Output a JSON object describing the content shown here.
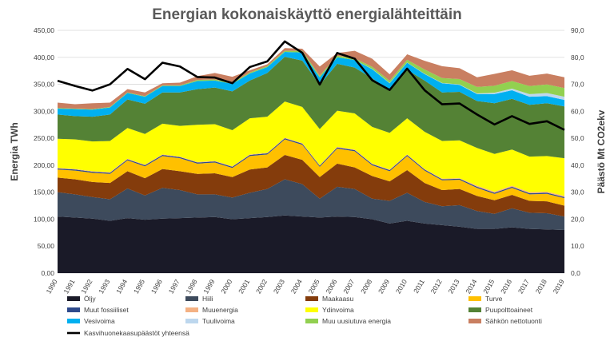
{
  "chart_data": {
    "type": "area",
    "stacked": true,
    "title": "Energian kokonaiskäyttö energialähteittäin",
    "xlabel": "",
    "ylabel": "Energia TWh",
    "y2label": "Päästö Mt CO2ekv",
    "ylim": [
      0,
      450
    ],
    "y2lim": [
      0,
      90
    ],
    "y_ticks": [
      "0,00",
      "50,00",
      "100,00",
      "150,00",
      "200,00",
      "250,00",
      "300,00",
      "350,00",
      "400,00",
      "450,00"
    ],
    "y2_ticks": [
      "0,0",
      "10,0",
      "20,0",
      "30,0",
      "40,0",
      "50,0",
      "60,0",
      "70,0",
      "80,0",
      "90,0"
    ],
    "grid": true,
    "legend_position": "bottom",
    "categories": [
      "1990",
      "1991",
      "1992",
      "1993",
      "1994",
      "1995",
      "1996",
      "1997",
      "1998",
      "1999",
      "2000",
      "2001",
      "2002",
      "2003",
      "2004",
      "2005",
      "2006",
      "2007",
      "2008",
      "2009",
      "2010",
      "2011",
      "2012",
      "2013",
      "2014",
      "2015",
      "2016",
      "2017",
      "2018",
      "2019"
    ],
    "series": [
      {
        "name": "Öljy",
        "color": "#1a1a28",
        "values": [
          105,
          103,
          101,
          97,
          102,
          99,
          101,
          102,
          103,
          104,
          100,
          102,
          104,
          107,
          105,
          103,
          105,
          104,
          100,
          92,
          97,
          92,
          89,
          86,
          82,
          82,
          85,
          82,
          81,
          80
        ]
      },
      {
        "name": "Hiili",
        "color": "#3d4a5c",
        "values": [
          45,
          43,
          40,
          40,
          55,
          45,
          57,
          52,
          43,
          42,
          40,
          47,
          52,
          67,
          60,
          35,
          55,
          52,
          38,
          42,
          52,
          40,
          35,
          40,
          33,
          28,
          35,
          30,
          30,
          25
        ]
      },
      {
        "name": "Maakaasu",
        "color": "#843c0c",
        "values": [
          27,
          28,
          28,
          30,
          32,
          32,
          35,
          35,
          38,
          39,
          38,
          43,
          40,
          45,
          45,
          40,
          43,
          40,
          42,
          36,
          42,
          35,
          30,
          30,
          28,
          25,
          25,
          22,
          22,
          20
        ]
      },
      {
        "name": "Turve",
        "color": "#ffc000",
        "values": [
          15,
          16,
          17,
          17,
          20,
          22,
          24,
          24,
          19,
          20,
          17,
          25,
          24,
          29,
          28,
          19,
          28,
          30,
          20,
          19,
          26,
          23,
          18,
          17,
          15,
          12,
          13,
          12,
          14,
          14
        ]
      },
      {
        "name": "Muut fossiiliset",
        "color": "#2e4a8c",
        "values": [
          2,
          2,
          2,
          2,
          2,
          2,
          2,
          2,
          2,
          2,
          2,
          2,
          2,
          2,
          2,
          2,
          2,
          2,
          2,
          2,
          2,
          2,
          2,
          2,
          2,
          2,
          2,
          2,
          2,
          2
        ]
      },
      {
        "name": "Muuenergia",
        "color": "#f4b183",
        "values": [
          1,
          1,
          1,
          1,
          1,
          1,
          1,
          1,
          1,
          1,
          1,
          1,
          1,
          1,
          1,
          1,
          1,
          1,
          1,
          1,
          1,
          1,
          1,
          1,
          2,
          2,
          2,
          2,
          2,
          2
        ]
      },
      {
        "name": "Ydinvoima",
        "color": "#ffff00",
        "values": [
          54,
          55,
          55,
          58,
          57,
          57,
          57,
          57,
          69,
          68,
          67,
          67,
          67,
          67,
          67,
          67,
          67,
          67,
          68,
          68,
          67,
          69,
          70,
          70,
          70,
          70,
          67,
          66,
          66,
          70
        ]
      },
      {
        "name": "Puupolttoaineet",
        "color": "#548235",
        "values": [
          45,
          43,
          46,
          49,
          53,
          56,
          58,
          62,
          66,
          68,
          72,
          70,
          81,
          83,
          86,
          82,
          87,
          85,
          90,
          79,
          90,
          95,
          90,
          90,
          87,
          94,
          94,
          96,
          98,
          96
        ]
      },
      {
        "name": "Vesivoima",
        "color": "#00b0f0",
        "values": [
          11,
          13,
          13,
          13,
          12,
          13,
          12,
          12,
          15,
          13,
          14,
          13,
          11,
          9,
          15,
          14,
          12,
          14,
          17,
          13,
          13,
          12,
          17,
          13,
          13,
          17,
          16,
          15,
          13,
          12
        ]
      },
      {
        "name": "Tuulivoima",
        "color": "#bdd7ee",
        "values": [
          0,
          0,
          0,
          0,
          0,
          0,
          0,
          0,
          0,
          0,
          0,
          0,
          0,
          0,
          0,
          0,
          0,
          0,
          0.5,
          0.5,
          0.5,
          0.5,
          0.5,
          0.8,
          1.1,
          2.3,
          3,
          4.8,
          5.8,
          6
        ]
      },
      {
        "name": "Muu uusiutuva energia",
        "color": "#92d050",
        "values": [
          1,
          1,
          1,
          1,
          1,
          1,
          1,
          1,
          2,
          2,
          2,
          2,
          2,
          2,
          3,
          3,
          3,
          3,
          4,
          4,
          5,
          8,
          9,
          10,
          12,
          13,
          14,
          15,
          16,
          16
        ]
      },
      {
        "name": "Sähkön nettotuonti",
        "color": "#c97f61",
        "values": [
          10,
          8,
          11,
          8,
          6,
          7,
          4,
          5,
          7,
          12,
          11,
          4,
          3,
          5,
          4,
          17,
          5,
          14,
          15,
          12,
          10,
          16,
          22,
          20,
          18,
          22,
          20,
          19,
          20,
          20
        ]
      }
    ],
    "line_series": {
      "name": "Kasvihuonekaasupäästöt yhteensä",
      "color": "#000000",
      "axis": "right",
      "values": [
        71.3,
        69.4,
        67.7,
        70,
        75.7,
        71.9,
        78,
        76.6,
        72.7,
        72.5,
        70.4,
        76.4,
        78.5,
        85.9,
        81.7,
        69.9,
        81.6,
        79.5,
        71.5,
        67.9,
        75.8,
        67.8,
        62.6,
        62.9,
        58.8,
        55.1,
        58.2,
        55.3,
        56.3,
        53.1
      ]
    }
  }
}
